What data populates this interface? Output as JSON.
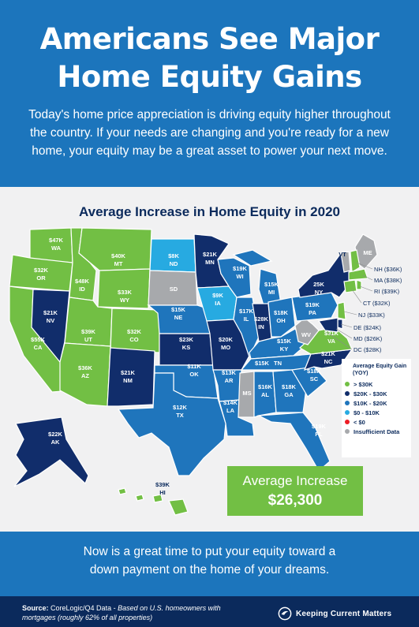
{
  "header": {
    "title_line1": "Americans See Major",
    "title_line2": "Home Equity Gains",
    "intro": "Today's home price appreciation is driving equity higher throughout the country. If your needs are changing and you're ready for a new home, your equity may be a great asset to power your next move."
  },
  "map": {
    "title": "Average Increase in Home Equity in 2020",
    "colors": {
      "over_30k": "#72bf44",
      "20k_30k": "#112d6b",
      "10k_20k": "#1f75bc",
      "0_10k": "#27aae1",
      "below_0": "#ed1c24",
      "insufficient": "#a7a9ac"
    },
    "states": [
      {
        "abbr": "WA",
        "value": "$47K"
      },
      {
        "abbr": "OR",
        "value": "$32K"
      },
      {
        "abbr": "CA",
        "value": "$55K"
      },
      {
        "abbr": "NV",
        "value": "$21K"
      },
      {
        "abbr": "ID",
        "value": "$48K"
      },
      {
        "abbr": "MT",
        "value": "$40K"
      },
      {
        "abbr": "WY",
        "value": "$33K"
      },
      {
        "abbr": "UT",
        "value": "$39K"
      },
      {
        "abbr": "AZ",
        "value": "$36K"
      },
      {
        "abbr": "CO",
        "value": "$32K"
      },
      {
        "abbr": "NM",
        "value": "$21K"
      },
      {
        "abbr": "ND",
        "value": "$8K"
      },
      {
        "abbr": "SD",
        "value": ""
      },
      {
        "abbr": "NE",
        "value": "$15K"
      },
      {
        "abbr": "KS",
        "value": "$23K"
      },
      {
        "abbr": "OK",
        "value": "$11K"
      },
      {
        "abbr": "TX",
        "value": "$12K"
      },
      {
        "abbr": "MN",
        "value": "$21K"
      },
      {
        "abbr": "IA",
        "value": "$9K"
      },
      {
        "abbr": "MO",
        "value": "$20K"
      },
      {
        "abbr": "AR",
        "value": "$13K"
      },
      {
        "abbr": "LA",
        "value": "$14K"
      },
      {
        "abbr": "WI",
        "value": "$19K"
      },
      {
        "abbr": "IL",
        "value": "$17K"
      },
      {
        "abbr": "MI",
        "value": "$15K"
      },
      {
        "abbr": "IN",
        "value": "$28K"
      },
      {
        "abbr": "OH",
        "value": "$18K"
      },
      {
        "abbr": "KY",
        "value": "$15K"
      },
      {
        "abbr": "TN",
        "value": "$15K"
      },
      {
        "abbr": "MS",
        "value": ""
      },
      {
        "abbr": "AL",
        "value": "$16K"
      },
      {
        "abbr": "GA",
        "value": "$18K"
      },
      {
        "abbr": "FL",
        "value": "$19K"
      },
      {
        "abbr": "SC",
        "value": "$18K"
      },
      {
        "abbr": "NC",
        "value": "$21K"
      },
      {
        "abbr": "VA",
        "value": "$31K"
      },
      {
        "abbr": "WV",
        "value": ""
      },
      {
        "abbr": "PA",
        "value": "$19K"
      },
      {
        "abbr": "NY",
        "value": "25K"
      },
      {
        "abbr": "VT",
        "value": ""
      },
      {
        "abbr": "ME",
        "value": ""
      },
      {
        "abbr": "AK",
        "value": "$22K"
      },
      {
        "abbr": "HI",
        "value": "$39K"
      }
    ],
    "small_states": [
      {
        "label": "NH ($36K)"
      },
      {
        "label": "MA ($38K)"
      },
      {
        "label": "RI ($39K)"
      },
      {
        "label": "CT ($32K)"
      },
      {
        "label": "NJ ($33K)"
      },
      {
        "label": "DE ($24K)"
      },
      {
        "label": "MD ($26K)"
      },
      {
        "label": "DC ($28K)"
      }
    ]
  },
  "legend": {
    "title": "Average Equity Gain (YOY)",
    "items": [
      {
        "label": "> $30K",
        "color": "#72bf44"
      },
      {
        "label": "$20K - $30K",
        "color": "#112d6b"
      },
      {
        "label": "$10K - $20K",
        "color": "#1f75bc"
      },
      {
        "label": "$0 - $10K",
        "color": "#27aae1"
      },
      {
        "label": "< $0",
        "color": "#ed1c24"
      },
      {
        "label": "Insufficient Data",
        "color": "#a7a9ac"
      }
    ]
  },
  "average": {
    "label": "Average Increase",
    "value": "$26,300"
  },
  "bottom": {
    "line1": "Now is a great time to put your equity toward a",
    "line2": "down payment on the home of your dreams."
  },
  "footer": {
    "source_label": "Source:",
    "source_text": "CoreLogic/Q4 Data -",
    "source_note": "Based on U.S. homeowners with mortgages (roughly 62% of all properties)",
    "brand": "Keeping Current Matters"
  }
}
